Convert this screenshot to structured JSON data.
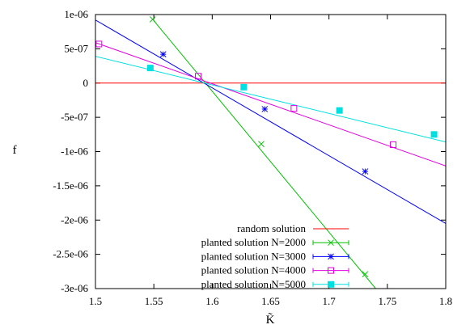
{
  "chart_data": {
    "type": "line",
    "title": "",
    "xlabel": "K̃",
    "ylabel": "f",
    "xlim": [
      1.5,
      1.8
    ],
    "ylim": [
      -3e-06,
      1e-06
    ],
    "x_ticks": [
      {
        "value": 1.5,
        "label": "1.5"
      },
      {
        "value": 1.55,
        "label": "1.55"
      },
      {
        "value": 1.6,
        "label": "1.6"
      },
      {
        "value": 1.65,
        "label": "1.65"
      },
      {
        "value": 1.7,
        "label": "1.7"
      },
      {
        "value": 1.75,
        "label": "1.75"
      },
      {
        "value": 1.8,
        "label": "1.8"
      }
    ],
    "y_ticks": [
      {
        "value": 1e-06,
        "label": "1e-06"
      },
      {
        "value": 5e-07,
        "label": "5e-07"
      },
      {
        "value": 0,
        "label": "0"
      },
      {
        "value": -5e-07,
        "label": "-5e-07"
      },
      {
        "value": -1e-06,
        "label": "-1e-06"
      },
      {
        "value": -1.5e-06,
        "label": "-1.5e-06"
      },
      {
        "value": -2e-06,
        "label": "-2e-06"
      },
      {
        "value": -2.5e-06,
        "label": "-2.5e-06"
      },
      {
        "value": -3e-06,
        "label": "-3e-06"
      }
    ],
    "grid": false,
    "legend_position": "bottom-center",
    "series": [
      {
        "name": "random solution",
        "color": "#ff0000",
        "marker": "none",
        "line": [
          [
            1.5,
            0
          ],
          [
            1.8,
            0
          ]
        ],
        "points": []
      },
      {
        "name": "planted solution N=2000",
        "color": "#00c000",
        "marker": "cross",
        "line": [
          [
            1.549,
            9.3e-07
          ],
          [
            1.74,
            -3e-06
          ]
        ],
        "points": [
          [
            1.549,
            9.3e-07
          ],
          [
            1.642,
            -8.9e-07
          ],
          [
            1.731,
            -2.79e-06
          ]
        ]
      },
      {
        "name": "planted solution N=3000",
        "color": "#0000ff",
        "marker": "star",
        "line": [
          [
            1.5,
            9.2e-07
          ],
          [
            1.8,
            -2.05e-06
          ]
        ],
        "points": [
          [
            1.558,
            4.2e-07
          ],
          [
            1.645,
            -3.8e-07
          ],
          [
            1.731,
            -1.29e-06
          ]
        ]
      },
      {
        "name": "planted solution N=4000",
        "color": "#e000e0",
        "marker": "square",
        "line": [
          [
            1.5,
            5.9e-07
          ],
          [
            1.8,
            -1.21e-06
          ]
        ],
        "points": [
          [
            1.503,
            5.7e-07
          ],
          [
            1.588,
            1e-07
          ],
          [
            1.67,
            -3.7e-07
          ],
          [
            1.755,
            -9e-07
          ]
        ]
      },
      {
        "name": "planted solution N=5000",
        "color": "#00e0e0",
        "marker": "filled-square",
        "line": [
          [
            1.5,
            3.9e-07
          ],
          [
            1.8,
            -8.6e-07
          ]
        ],
        "points": [
          [
            1.547,
            2.2e-07
          ],
          [
            1.627,
            -6e-08
          ],
          [
            1.709,
            -4e-07
          ],
          [
            1.79,
            -7.5e-07
          ]
        ]
      }
    ]
  }
}
